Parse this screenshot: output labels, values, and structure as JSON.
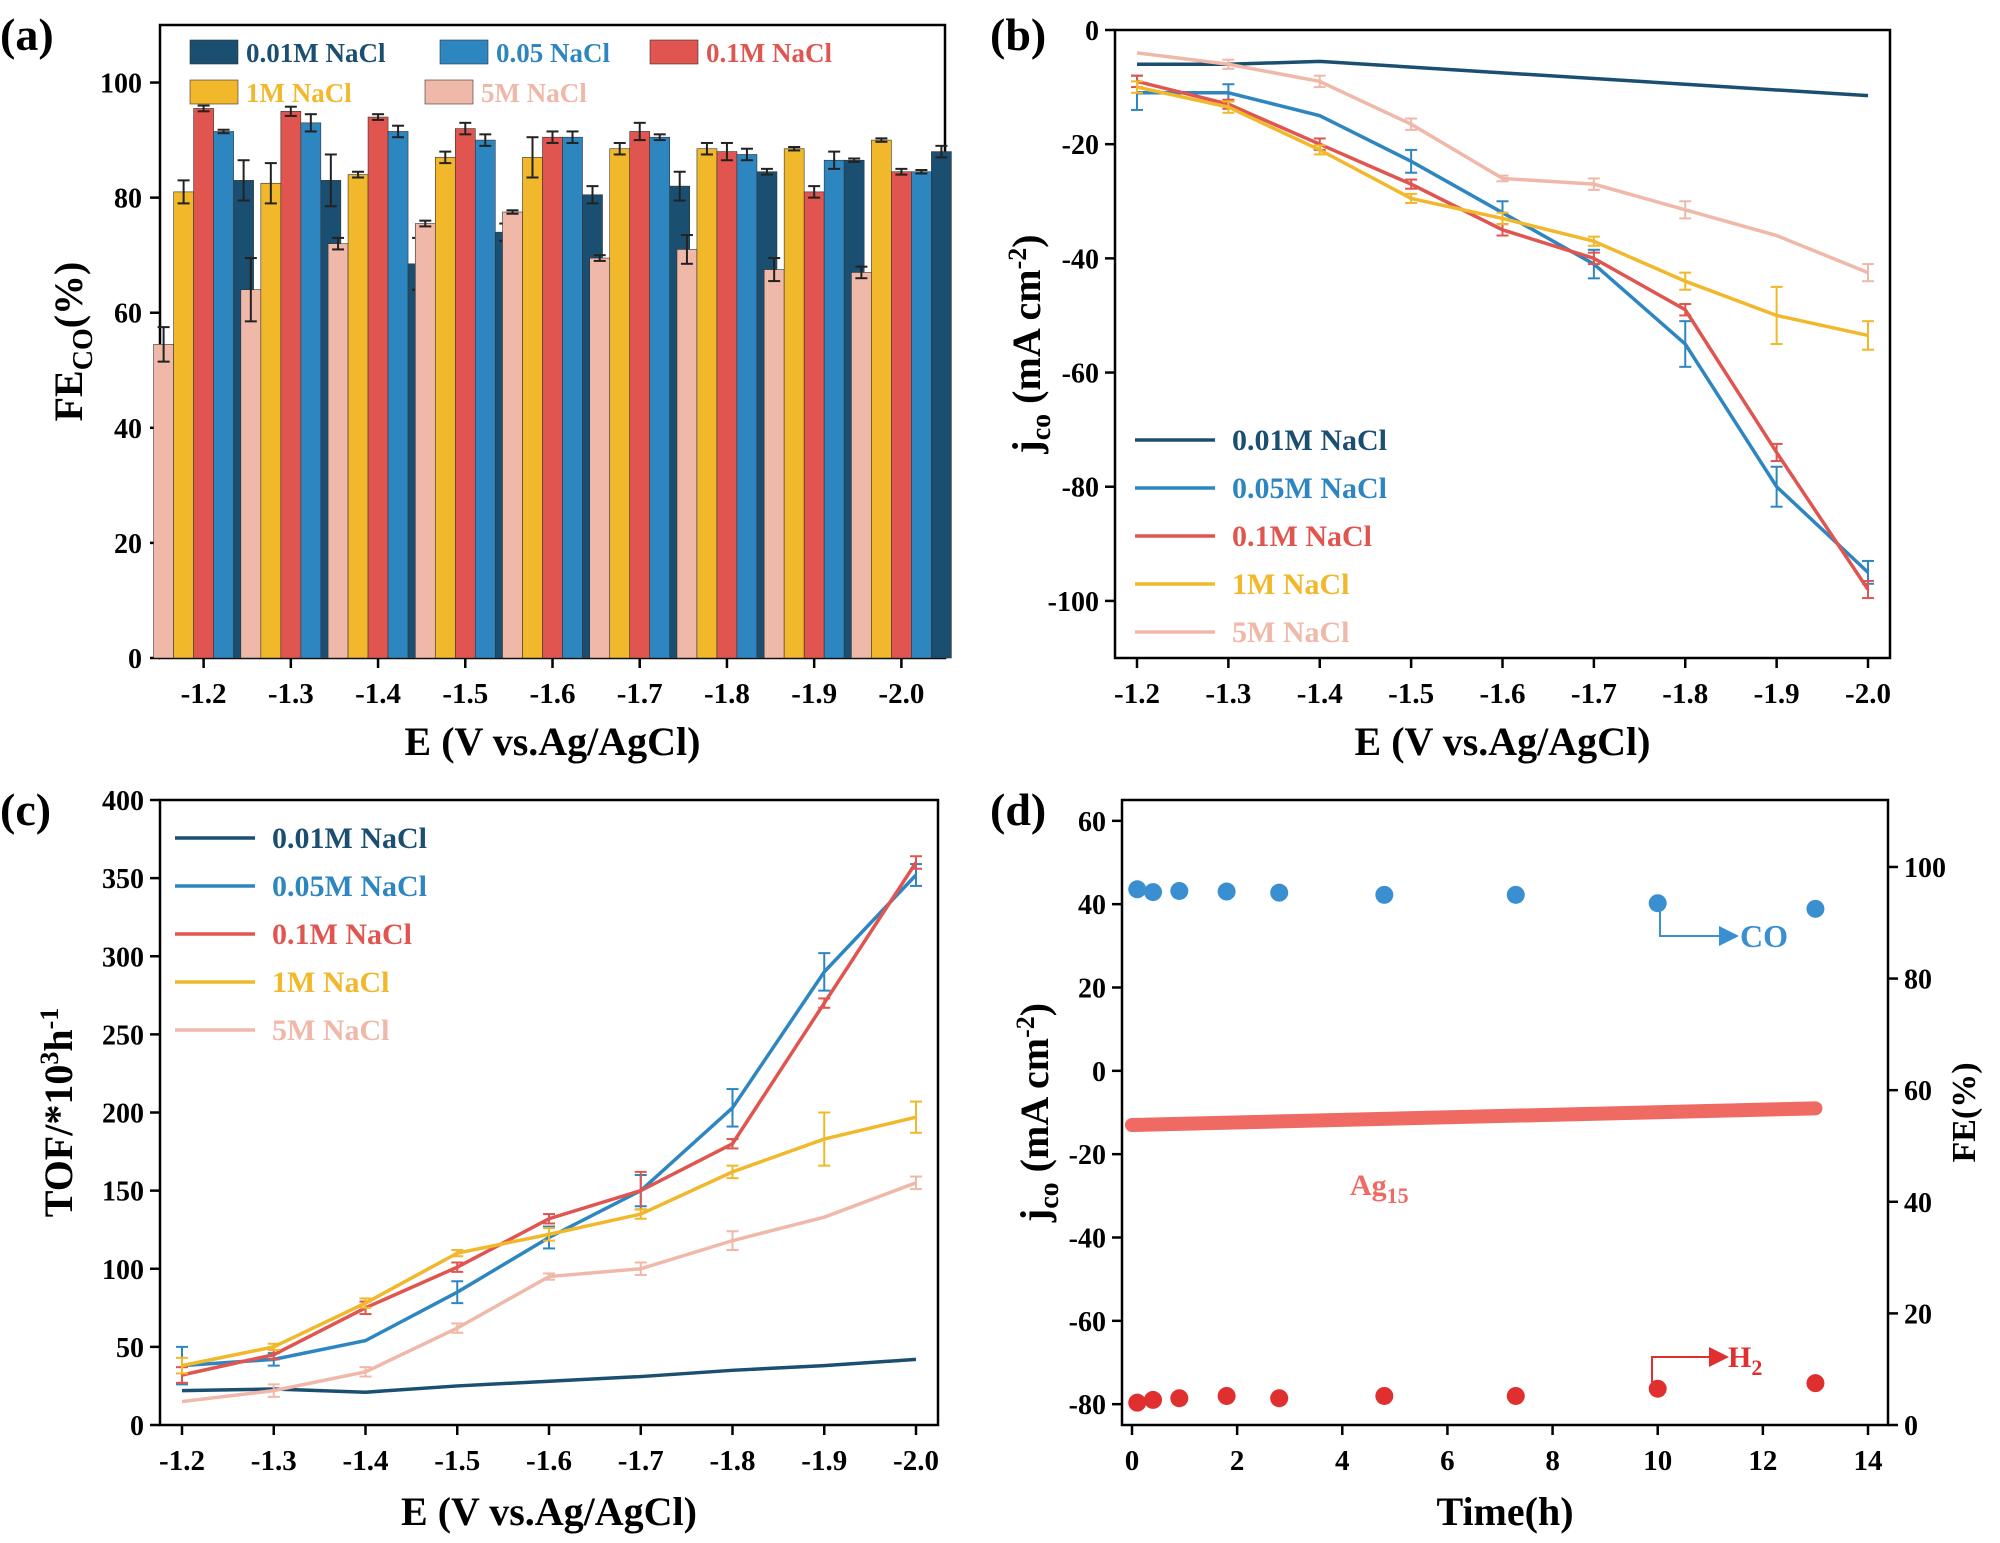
{
  "colors": {
    "c001": "#1b4f72",
    "c005": "#2e86c1",
    "c01": "#e0554f",
    "c1": "#f0b82a",
    "c5": "#f0b8a8",
    "dot_blue": "#3a8fd0",
    "dot_red": "#e02f2f",
    "line_red": "#ee6a62"
  },
  "chart_data": [
    {
      "id": "a",
      "panel_label": "(a)",
      "type": "bar",
      "xlabel": "E (V vs.Ag/AgCl)",
      "ylabel": "FE",
      "ylabel_sub": "CO",
      "ylabel_suffix": "(%)",
      "ylim": [
        0,
        110
      ],
      "yticks": [
        "0",
        "20",
        "40",
        "60",
        "80",
        "100"
      ],
      "categories": [
        "-1.2",
        "-1.3",
        "-1.4",
        "-1.5",
        "-1.6",
        "-1.7",
        "-1.8",
        "-1.9",
        "-2.0"
      ],
      "legend": {
        "placement": "top",
        "rows": [
          [
            "0.01M NaCl",
            "0.05 NaCl",
            "0.1M NaCl"
          ],
          [
            "1M    NaCl",
            "5M    NaCl"
          ]
        ]
      },
      "series": [
        {
          "name": "5M    NaCl",
          "color_key": "c5",
          "values": [
            54.5,
            64,
            72,
            75.5,
            77.5,
            69.5,
            71,
            67.5,
            67
          ],
          "errors": [
            3,
            5.5,
            1,
            0.5,
            0.3,
            0.5,
            2.5,
            2,
            1
          ]
        },
        {
          "name": "1M    NaCl",
          "color_key": "c1",
          "values": [
            81,
            82.5,
            84,
            87,
            87,
            88.5,
            88.5,
            88.5,
            90
          ],
          "errors": [
            2,
            3.5,
            0.5,
            1,
            3.5,
            1,
            1,
            0.3,
            0.3
          ]
        },
        {
          "name": "0.1M NaCl",
          "color_key": "c01",
          "values": [
            95.5,
            95,
            94,
            92,
            90.5,
            91.5,
            88,
            81,
            84.5
          ],
          "errors": [
            0.5,
            0.8,
            0.5,
            1,
            1,
            1.5,
            1.5,
            1,
            0.5
          ]
        },
        {
          "name": "0.05 NaCl",
          "color_key": "c005",
          "values": [
            91.5,
            93,
            91.5,
            90,
            90.5,
            90.5,
            87.5,
            86.5,
            84.5
          ],
          "errors": [
            0.3,
            1.5,
            1,
            1,
            1,
            0.5,
            1,
            1.5,
            0.3
          ]
        },
        {
          "name": "0.01M NaCl",
          "color_key": "c001",
          "values": [
            83,
            83,
            68.5,
            74,
            80.5,
            82,
            84.5,
            86.5,
            88
          ],
          "errors": [
            3.5,
            4.5,
            4.5,
            1.5,
            1.5,
            2.5,
            0.5,
            0.3,
            1
          ]
        }
      ]
    },
    {
      "id": "b",
      "panel_label": "(b)",
      "type": "line",
      "xlabel": "E (V vs.Ag/AgCl)",
      "ylabel": "j",
      "ylabel_sub": "co",
      "ylabel_suffix": " (mA cm",
      "ylabel_sup": "-2",
      "ylabel_close": ")",
      "ylim": [
        -110,
        0
      ],
      "yticks": [
        "0",
        "-20",
        "-40",
        "-60",
        "-80",
        "-100"
      ],
      "x": [
        "-1.2",
        "-1.3",
        "-1.4",
        "-1.5",
        "-1.6",
        "-1.7",
        "-1.8",
        "-1.9",
        "-2.0"
      ],
      "legend": {
        "placement": "bottom-left",
        "labels": [
          "0.01M NaCl",
          "0.05M NaCl",
          "0.1M  NaCl",
          "1M      NaCl",
          "5M      NaCl"
        ]
      },
      "series": [
        {
          "name": "0.01M NaCl",
          "color_key": "c001",
          "values": [
            -6,
            -6,
            -5.5,
            -6.5,
            -7.5,
            -8.5,
            -9.5,
            -10.5,
            -11.5
          ],
          "errors": null
        },
        {
          "name": "0.05M NaCl",
          "color_key": "c005",
          "values": [
            -11,
            -11,
            -15,
            -23,
            -32,
            -41,
            -55,
            -80,
            -95
          ],
          "errors": [
            3,
            1.5,
            0,
            2,
            2,
            2.5,
            4,
            3.5,
            2
          ]
        },
        {
          "name": "0.1M  NaCl",
          "color_key": "c01",
          "values": [
            -9,
            -13,
            -20,
            -27,
            -35,
            -40,
            -49,
            -74,
            -98
          ],
          "errors": [
            1,
            0.8,
            1,
            0.8,
            1,
            1,
            1,
            1.5,
            1.5
          ]
        },
        {
          "name": "1M      NaCl",
          "color_key": "c1",
          "values": [
            -10,
            -13.5,
            -21,
            -29.5,
            -33,
            -37,
            -44,
            -50,
            -53.5
          ],
          "errors": [
            1,
            1,
            0.8,
            0.8,
            1,
            0.8,
            1.5,
            5,
            2.5
          ]
        },
        {
          "name": "5M      NaCl",
          "color_key": "c5",
          "values": [
            -4,
            -6,
            -9,
            -16.5,
            -26,
            -27,
            -31.5,
            -36,
            -42.5
          ],
          "errors": [
            0,
            0.8,
            1,
            1,
            0.5,
            1,
            1.5,
            0,
            1.5
          ]
        }
      ]
    },
    {
      "id": "c",
      "panel_label": "(c)",
      "type": "line",
      "xlabel": "E (V vs.Ag/AgCl)",
      "ylabel": "TOF/*10",
      "ylabel_sup": "3",
      "ylabel_mid": "h",
      "ylabel_sup2": "-1",
      "ylim": [
        0,
        400
      ],
      "yticks": [
        "0",
        "50",
        "100",
        "150",
        "200",
        "250",
        "300",
        "350",
        "400"
      ],
      "x": [
        "-1.2",
        "-1.3",
        "-1.4",
        "-1.5",
        "-1.6",
        "-1.7",
        "-1.8",
        "-1.9",
        "-2.0"
      ],
      "legend": {
        "placement": "top-left",
        "labels": [
          "0.01M NaCl",
          "0.05M NaCl",
          "0.1M  NaCl",
          "1M      NaCl",
          "5M      NaCl"
        ]
      },
      "series": [
        {
          "name": "0.01M NaCl",
          "color_key": "c001",
          "values": [
            22,
            23,
            21,
            25,
            28,
            31,
            35,
            38,
            42
          ],
          "errors": null
        },
        {
          "name": "0.05M NaCl",
          "color_key": "c005",
          "values": [
            38,
            42,
            54,
            85,
            120,
            150,
            203,
            290,
            352
          ],
          "errors": [
            12,
            4,
            0,
            7,
            7,
            10,
            12,
            12,
            7
          ]
        },
        {
          "name": "0.1M  NaCl",
          "color_key": "c01",
          "values": [
            32,
            45,
            75,
            101,
            132,
            150,
            180,
            270,
            360
          ],
          "errors": [
            5,
            3,
            4,
            3,
            3,
            12,
            3,
            3,
            4
          ]
        },
        {
          "name": "1M      NaCl",
          "color_key": "c1",
          "values": [
            38,
            50,
            78,
            110,
            122,
            135,
            162,
            183,
            197
          ],
          "errors": [
            5,
            2,
            3,
            2,
            4,
            3,
            4,
            17,
            10
          ]
        },
        {
          "name": "5M      NaCl",
          "color_key": "c5",
          "values": [
            15,
            22,
            34,
            62,
            95,
            100,
            118,
            133,
            155
          ],
          "errors": [
            0,
            4,
            3,
            3,
            2,
            4,
            6,
            0,
            4
          ]
        }
      ]
    },
    {
      "id": "d",
      "panel_label": "(d)",
      "type": "scatter",
      "xlabel": "Time(h)",
      "ylabel": "j",
      "ylabel_sub": "co",
      "ylabel_suffix": " (mA cm",
      "ylabel_sup": "-2",
      "ylabel_close": ")",
      "y2label": "FE(%)",
      "xlim": [
        0,
        14
      ],
      "ylim": [
        -85,
        65
      ],
      "y2lim": [
        0,
        112
      ],
      "xticks": [
        "0",
        "2",
        "4",
        "6",
        "8",
        "10",
        "12",
        "14"
      ],
      "yticks": [
        "-80",
        "-60",
        "-40",
        "-20",
        "0",
        "20",
        "40",
        "60"
      ],
      "y2ticks": [
        "0",
        "20",
        "40",
        "60",
        "80",
        "100"
      ],
      "current_line": {
        "label": "Ag",
        "label_sub": "15",
        "x": [
          0,
          13
        ],
        "y": [
          -13,
          -9
        ]
      },
      "co_points": {
        "label": "CO",
        "x": [
          0.1,
          0.4,
          0.9,
          1.8,
          2.8,
          4.8,
          7.3,
          10,
          13
        ],
        "y": [
          96,
          95.5,
          95.7,
          95.6,
          95.4,
          95,
          95,
          93.5,
          92.5
        ]
      },
      "h2_points": {
        "label": "H",
        "label_sub": "2",
        "x": [
          0.1,
          0.4,
          0.9,
          1.8,
          2.8,
          4.8,
          7.3,
          10,
          13
        ],
        "y": [
          4,
          4.5,
          4.8,
          5.2,
          4.8,
          5.2,
          5.2,
          6.5,
          7.5
        ]
      }
    }
  ]
}
